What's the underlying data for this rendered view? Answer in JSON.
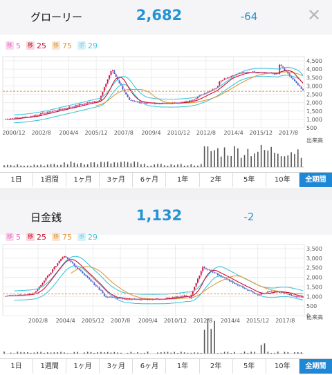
{
  "stocks": [
    {
      "name": "グローリー",
      "price": "2,682",
      "change": "-64",
      "legend": [
        {
          "tag": "移",
          "value": "5",
          "color": "#e76bc3"
        },
        {
          "tag": "移",
          "value": "25",
          "color": "#c8102e"
        },
        {
          "tag": "移",
          "value": "75",
          "color": "#e0973b"
        },
        {
          "tag": "ボ",
          "value": "29",
          "color": "#3fc7de"
        }
      ],
      "y_labels": [
        "4,500",
        "4,000",
        "3,500",
        "3,000",
        "2,500",
        "2,000",
        "1,500",
        "1,000",
        "500"
      ],
      "x_labels": [
        "2000/12",
        "2002/8",
        "2004/4",
        "2005/12",
        "2007/8",
        "2009/4",
        "2010/12",
        "2012/8",
        "2014/4",
        "2015/12",
        "2017/8"
      ],
      "volume_label": "出来高"
    },
    {
      "name": "日金銭",
      "price": "1,132",
      "change": "-2",
      "legend": [
        {
          "tag": "移",
          "value": "5",
          "color": "#e76bc3"
        },
        {
          "tag": "移",
          "value": "25",
          "color": "#c8102e"
        },
        {
          "tag": "移",
          "value": "75",
          "color": "#e0973b"
        },
        {
          "tag": "ボ",
          "value": "29",
          "color": "#3fc7de"
        }
      ],
      "y_labels": [
        "3,500",
        "3,000",
        "2,500",
        "2,000",
        "1,500",
        "1,000",
        "500",
        "0"
      ],
      "x_labels": [
        "2002/8",
        "2004/4",
        "2005/12",
        "2007/8",
        "2009/4",
        "2010/12",
        "2012/8",
        "2014/4",
        "2015/12",
        "2017/8"
      ],
      "volume_label": "出来高"
    }
  ],
  "tabs": [
    "1日",
    "1週間",
    "1ヶ月",
    "3ヶ月",
    "6ヶ月",
    "1年",
    "2年",
    "5年",
    "10年",
    "全期間"
  ],
  "active_tab_index": 9,
  "colors": {
    "accent": "#2493d6",
    "candle_up": "#c8102e",
    "candle_down": "#2b63c9",
    "ma5": "#e76bc3",
    "ma25": "#c8102e",
    "ma75": "#e0973b",
    "boll": "#3fc7de",
    "last_price": "#e0973b"
  },
  "close_icon": "close-icon",
  "chart_data": [
    {
      "type": "line",
      "x": [
        "2000/12",
        "2002/8",
        "2004/4",
        "2005/12",
        "2007/8",
        "2009/4",
        "2010/12",
        "2012/8",
        "2014/4",
        "2015/12",
        "2017/8"
      ],
      "series": [],
      "price_range": [
        500,
        4500
      ],
      "last_price": 2682,
      "grid": true
    },
    {
      "type": "line",
      "x": [
        "2002/8",
        "2004/4",
        "2005/12",
        "2007/8",
        "2009/4",
        "2010/12",
        "2012/8",
        "2014/4",
        "2015/12",
        "2017/8"
      ],
      "series": [],
      "price_range": [
        0,
        3500
      ],
      "last_price": 1132,
      "grid": true
    }
  ]
}
